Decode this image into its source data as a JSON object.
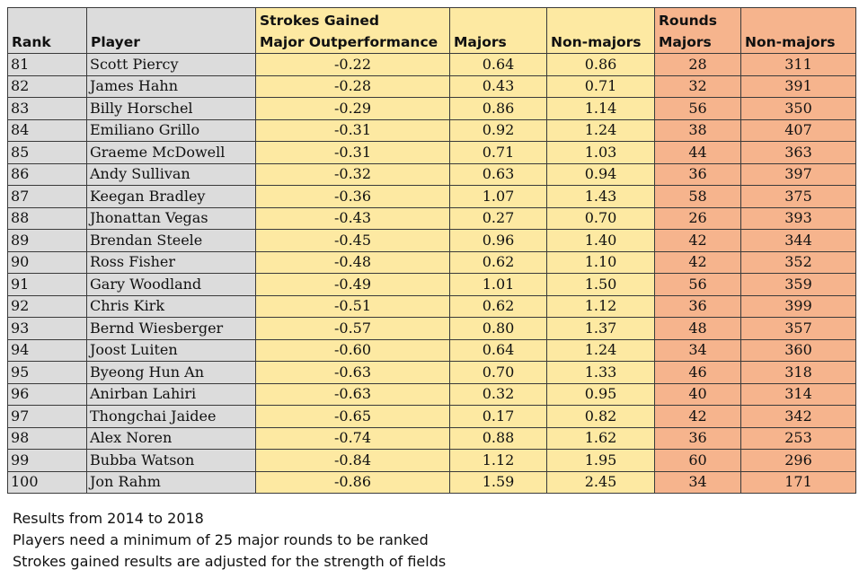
{
  "header": {
    "rank": "Rank",
    "player": "Player",
    "sg_group": "Strokes Gained",
    "sg_sub": "Major Outperformance",
    "majors": "Majors",
    "nonmajors": "Non-majors",
    "rounds_group": "Rounds",
    "rounds_majors": "Majors",
    "rounds_nonmajors": "Non-majors"
  },
  "rows": [
    {
      "rank": "81",
      "player": "Scott Piercy",
      "outperf": "-0.22",
      "sg_majors": "0.64",
      "sg_nonmajors": "0.86",
      "rounds_majors": "28",
      "rounds_nonmajors": "311"
    },
    {
      "rank": "82",
      "player": "James Hahn",
      "outperf": "-0.28",
      "sg_majors": "0.43",
      "sg_nonmajors": "0.71",
      "rounds_majors": "32",
      "rounds_nonmajors": "391"
    },
    {
      "rank": "83",
      "player": "Billy Horschel",
      "outperf": "-0.29",
      "sg_majors": "0.86",
      "sg_nonmajors": "1.14",
      "rounds_majors": "56",
      "rounds_nonmajors": "350"
    },
    {
      "rank": "84",
      "player": "Emiliano Grillo",
      "outperf": "-0.31",
      "sg_majors": "0.92",
      "sg_nonmajors": "1.24",
      "rounds_majors": "38",
      "rounds_nonmajors": "407"
    },
    {
      "rank": "85",
      "player": "Graeme McDowell",
      "outperf": "-0.31",
      "sg_majors": "0.71",
      "sg_nonmajors": "1.03",
      "rounds_majors": "44",
      "rounds_nonmajors": "363"
    },
    {
      "rank": "86",
      "player": "Andy Sullivan",
      "outperf": "-0.32",
      "sg_majors": "0.63",
      "sg_nonmajors": "0.94",
      "rounds_majors": "36",
      "rounds_nonmajors": "397"
    },
    {
      "rank": "87",
      "player": "Keegan Bradley",
      "outperf": "-0.36",
      "sg_majors": "1.07",
      "sg_nonmajors": "1.43",
      "rounds_majors": "58",
      "rounds_nonmajors": "375"
    },
    {
      "rank": "88",
      "player": "Jhonattan Vegas",
      "outperf": "-0.43",
      "sg_majors": "0.27",
      "sg_nonmajors": "0.70",
      "rounds_majors": "26",
      "rounds_nonmajors": "393"
    },
    {
      "rank": "89",
      "player": "Brendan Steele",
      "outperf": "-0.45",
      "sg_majors": "0.96",
      "sg_nonmajors": "1.40",
      "rounds_majors": "42",
      "rounds_nonmajors": "344"
    },
    {
      "rank": "90",
      "player": "Ross Fisher",
      "outperf": "-0.48",
      "sg_majors": "0.62",
      "sg_nonmajors": "1.10",
      "rounds_majors": "42",
      "rounds_nonmajors": "352"
    },
    {
      "rank": "91",
      "player": "Gary Woodland",
      "outperf": "-0.49",
      "sg_majors": "1.01",
      "sg_nonmajors": "1.50",
      "rounds_majors": "56",
      "rounds_nonmajors": "359"
    },
    {
      "rank": "92",
      "player": "Chris Kirk",
      "outperf": "-0.51",
      "sg_majors": "0.62",
      "sg_nonmajors": "1.12",
      "rounds_majors": "36",
      "rounds_nonmajors": "399"
    },
    {
      "rank": "93",
      "player": "Bernd Wiesberger",
      "outperf": "-0.57",
      "sg_majors": "0.80",
      "sg_nonmajors": "1.37",
      "rounds_majors": "48",
      "rounds_nonmajors": "357"
    },
    {
      "rank": "94",
      "player": "Joost Luiten",
      "outperf": "-0.60",
      "sg_majors": "0.64",
      "sg_nonmajors": "1.24",
      "rounds_majors": "34",
      "rounds_nonmajors": "360"
    },
    {
      "rank": "95",
      "player": "Byeong Hun An",
      "outperf": "-0.63",
      "sg_majors": "0.70",
      "sg_nonmajors": "1.33",
      "rounds_majors": "46",
      "rounds_nonmajors": "318"
    },
    {
      "rank": "96",
      "player": "Anirban Lahiri",
      "outperf": "-0.63",
      "sg_majors": "0.32",
      "sg_nonmajors": "0.95",
      "rounds_majors": "40",
      "rounds_nonmajors": "314"
    },
    {
      "rank": "97",
      "player": "Thongchai Jaidee",
      "outperf": "-0.65",
      "sg_majors": "0.17",
      "sg_nonmajors": "0.82",
      "rounds_majors": "42",
      "rounds_nonmajors": "342"
    },
    {
      "rank": "98",
      "player": "Alex Noren",
      "outperf": "-0.74",
      "sg_majors": "0.88",
      "sg_nonmajors": "1.62",
      "rounds_majors": "36",
      "rounds_nonmajors": "253"
    },
    {
      "rank": "99",
      "player": "Bubba Watson",
      "outperf": "-0.84",
      "sg_majors": "1.12",
      "sg_nonmajors": "1.95",
      "rounds_majors": "60",
      "rounds_nonmajors": "296"
    },
    {
      "rank": "100",
      "player": "Jon Rahm",
      "outperf": "-0.86",
      "sg_majors": "1.59",
      "sg_nonmajors": "2.45",
      "rounds_majors": "34",
      "rounds_nonmajors": "171"
    }
  ],
  "notes": [
    "Results from 2014 to 2018",
    "Players need a minimum of 25 major rounds to be ranked",
    "Strokes gained results are adjusted for the strength of fields"
  ],
  "colors": {
    "rank_player_bg": "#dcdcdc",
    "strokes_gained_bg": "#fde9a2",
    "rounds_bg": "#f6b48d"
  }
}
